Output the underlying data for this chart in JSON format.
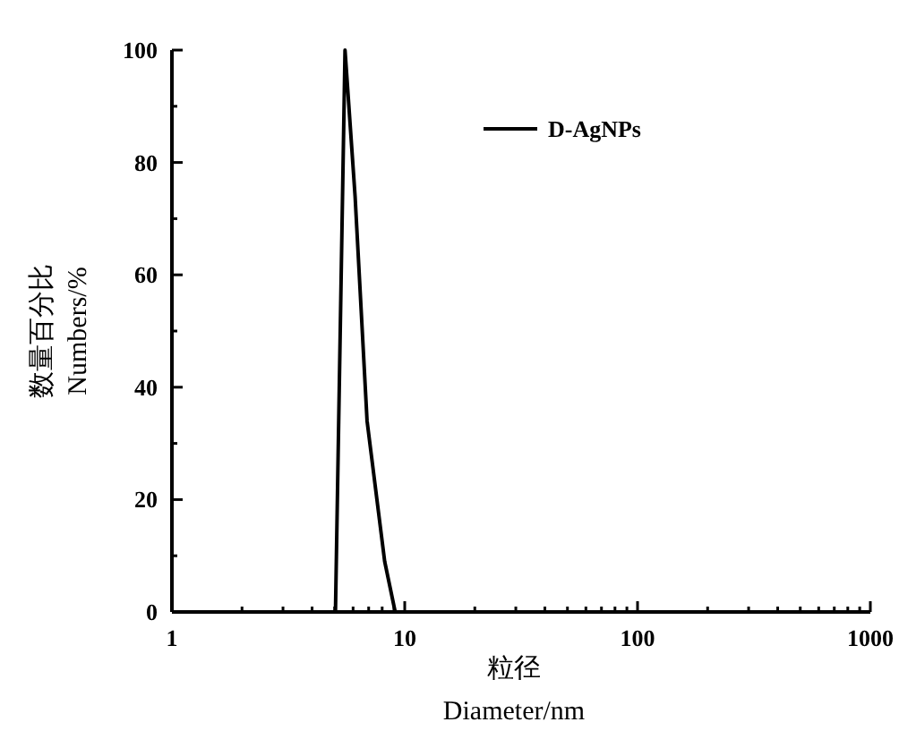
{
  "chart_data": {
    "type": "line",
    "xlabel": "粒径\nDiameter/nm",
    "ylabel": "数量百分比\nNumbers/%",
    "log": "x",
    "xlim": [
      1,
      1000
    ],
    "ylim": [
      0,
      100
    ],
    "xticks": [
      1,
      {
        "value": 2,
        "label": null
      },
      {
        "value": 3,
        "label": null
      },
      {
        "value": 4,
        "label": null
      },
      {
        "value": 5,
        "label": null
      },
      {
        "value": 6,
        "label": null
      },
      {
        "value": 7,
        "label": null
      },
      {
        "value": 8,
        "label": null
      },
      {
        "value": 9,
        "label": null
      },
      10,
      {
        "value": 20,
        "label": null
      },
      {
        "value": 30,
        "label": null
      },
      {
        "value": 40,
        "label": null
      },
      {
        "value": 50,
        "label": null
      },
      {
        "value": 60,
        "label": null
      },
      {
        "value": 70,
        "label": null
      },
      {
        "value": 80,
        "label": null
      },
      {
        "value": 90,
        "label": null
      },
      100,
      {
        "value": 200,
        "label": null
      },
      {
        "value": 300,
        "label": null
      },
      {
        "value": 400,
        "label": null
      },
      {
        "value": 500,
        "label": null
      },
      {
        "value": 600,
        "label": null
      },
      {
        "value": 700,
        "label": null
      },
      {
        "value": 800,
        "label": null
      },
      {
        "value": 900,
        "label": null
      },
      1000
    ],
    "yticks": [
      0,
      {
        "value": 10,
        "label": null
      },
      20,
      {
        "value": 30,
        "label": null
      },
      40,
      {
        "value": 50,
        "label": null
      },
      60,
      {
        "value": 70,
        "label": null
      },
      80,
      {
        "value": 90,
        "label": null
      },
      100
    ],
    "grid": false,
    "legend": "top right",
    "marker": "none",
    "line_style": "solid",
    "series": [
      {
        "name": "D-AgNPs",
        "color": "#000000",
        "x": [
          5.04,
          5.54,
          6.12,
          6.89,
          8.2,
          9.1
        ],
        "values": [
          0,
          100,
          74,
          34,
          9,
          0
        ]
      }
    ]
  }
}
